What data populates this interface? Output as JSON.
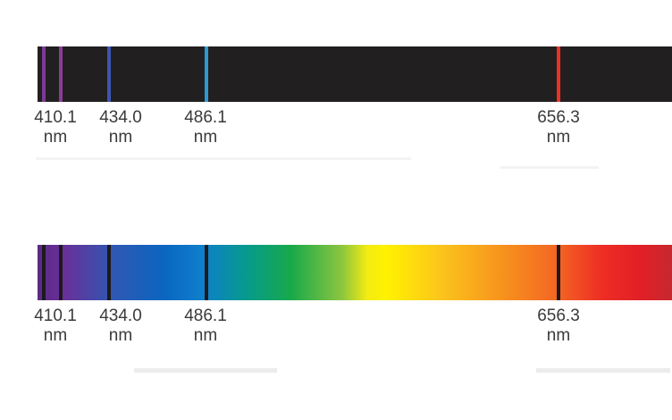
{
  "emission": {
    "lines": [
      {
        "color": "#7b3a96"
      },
      {
        "color": "#8a3b98"
      },
      {
        "color": "#3d56b1"
      },
      {
        "color": "#2b9ad3"
      },
      {
        "color": "#ee3124"
      }
    ],
    "labels": [
      {
        "value": "410.1",
        "unit": "nm"
      },
      {
        "value": "434.0",
        "unit": "nm"
      },
      {
        "value": "486.1",
        "unit": "nm"
      },
      {
        "value": "656.3",
        "unit": "nm"
      }
    ]
  },
  "absorption": {
    "lines": [
      {
        "color": "#1d1a1c"
      },
      {
        "color": "#1d1a1c"
      },
      {
        "color": "#1d1a1c"
      },
      {
        "color": "#1d1a1c"
      },
      {
        "color": "#1d1a1c"
      }
    ],
    "labels": [
      {
        "value": "410.1",
        "unit": "nm"
      },
      {
        "value": "434.0",
        "unit": "nm"
      },
      {
        "value": "486.1",
        "unit": "nm"
      },
      {
        "value": "656.3",
        "unit": "nm"
      }
    ]
  }
}
